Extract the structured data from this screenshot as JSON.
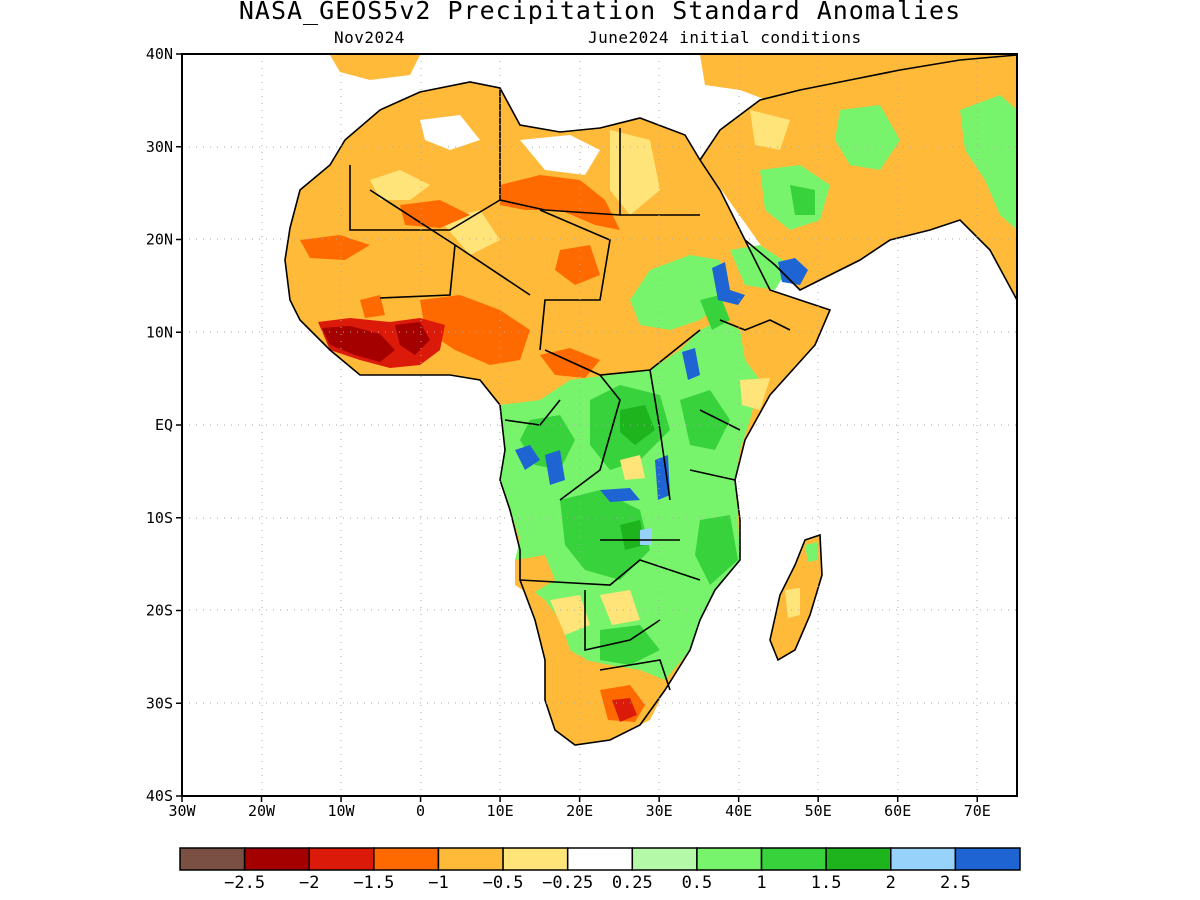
{
  "title": "NASA_GEOS5v2 Precipitation Standard Anomalies",
  "subtitle_left": "Nov2024",
  "subtitle_right": "June2024 initial conditions",
  "lat_ticks": [
    "40N",
    "30N",
    "20N",
    "10N",
    "EQ",
    "10S",
    "20S",
    "30S",
    "40S"
  ],
  "lon_ticks": [
    "30W",
    "20W",
    "10W",
    "0",
    "10E",
    "20E",
    "30E",
    "40E",
    "50E",
    "60E",
    "70E"
  ],
  "colorbar": {
    "colors": [
      "#7a5045",
      "#a40000",
      "#dc1a0a",
      "#ff6a00",
      "#ffba3a",
      "#ffe47a",
      "#ffffff",
      "#b4f9a8",
      "#78f46c",
      "#37d23c",
      "#1eb41e",
      "#96d2fa",
      "#1e64d2"
    ],
    "labels": [
      "-2.5",
      "-2",
      "-1.5",
      "-1",
      "-0.5",
      "-0.25",
      "0.25",
      "0.5",
      "1",
      "1.5",
      "2",
      "2.5"
    ]
  },
  "map_data": {
    "region": "Africa",
    "lon_range": [
      -30,
      75
    ],
    "lat_range": [
      -40,
      40
    ],
    "grid": true,
    "variable": "Precipitation standard anomaly"
  }
}
